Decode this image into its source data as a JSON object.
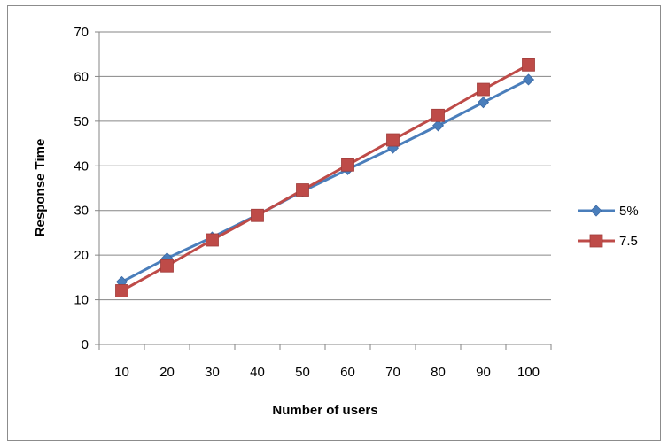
{
  "chart_data": {
    "type": "line",
    "title": "",
    "xlabel": "Number of users",
    "ylabel": "Response Time",
    "categories": [
      "10",
      "20",
      "30",
      "40",
      "50",
      "60",
      "70",
      "80",
      "90",
      "100"
    ],
    "ylim": [
      0,
      70
    ],
    "yticks": [
      "0",
      "10",
      "20",
      "30",
      "40",
      "50",
      "60",
      "70"
    ],
    "grid": "horizontal",
    "legend_position": "right",
    "series": [
      {
        "name": "5%",
        "values": [
          14,
          19.3,
          24,
          29,
          34.3,
          39.2,
          44,
          49,
          54.2,
          59.3
        ],
        "color": "#4a7ebb",
        "marker": "diamond"
      },
      {
        "name": "7.5",
        "values": [
          12,
          17.6,
          23.4,
          28.9,
          34.6,
          40.2,
          45.8,
          51.3,
          57.1,
          62.6
        ],
        "color": "#be4b48",
        "marker": "square"
      }
    ]
  }
}
